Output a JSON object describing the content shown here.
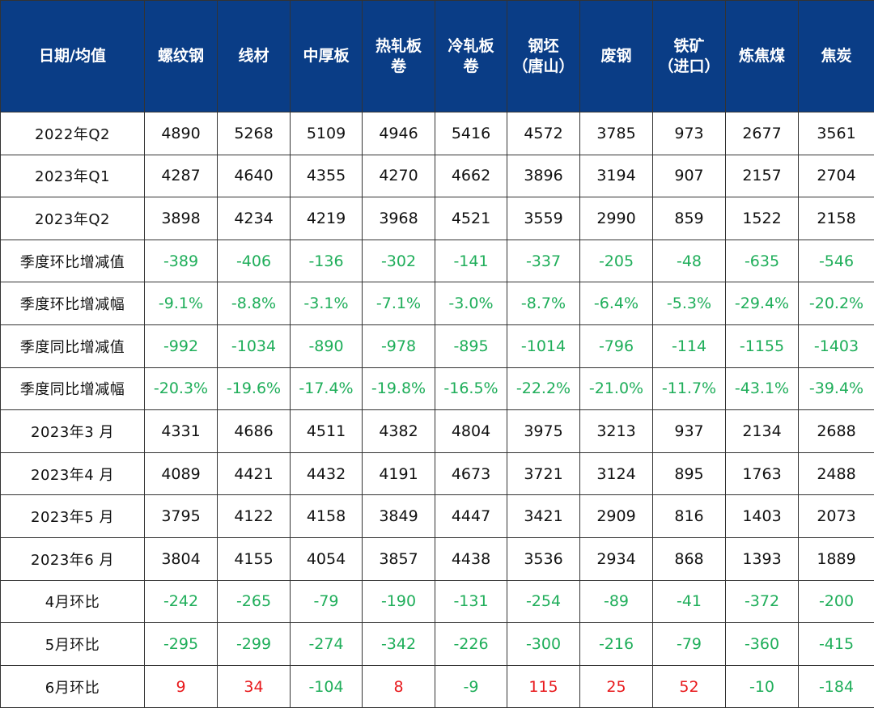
{
  "colors": {
    "header_bg": "#0a3d86",
    "header_text": "#ffffff",
    "negative": "#1fae5a",
    "positive": "#e8191c"
  },
  "header": [
    [
      "日期/均值"
    ],
    [
      "螺纹钢"
    ],
    [
      "线材"
    ],
    [
      "中厚板"
    ],
    [
      "热轧板",
      "卷"
    ],
    [
      "冷轧板",
      "卷"
    ],
    [
      "钢坯",
      "（唐山）"
    ],
    [
      "废钢"
    ],
    [
      "铁矿",
      "（进口）"
    ],
    [
      "炼焦煤"
    ],
    [
      "焦炭"
    ]
  ],
  "rows": [
    {
      "label": "2022年Q2",
      "cells": [
        "4890",
        "5268",
        "5109",
        "4946",
        "5416",
        "4572",
        "3785",
        "973",
        "2677",
        "3561"
      ]
    },
    {
      "label": "2023年Q1",
      "cells": [
        "4287",
        "4640",
        "4355",
        "4270",
        "4662",
        "3896",
        "3194",
        "907",
        "2157",
        "2704"
      ]
    },
    {
      "label": "2023年Q2",
      "cells": [
        "3898",
        "4234",
        "4219",
        "3968",
        "4521",
        "3559",
        "2990",
        "859",
        "1522",
        "2158"
      ]
    },
    {
      "label": "季度环比增减值",
      "cells": [
        "-389",
        "-406",
        "-136",
        "-302",
        "-141",
        "-337",
        "-205",
        "-48",
        "-635",
        "-546"
      ]
    },
    {
      "label": "季度环比增减幅",
      "cells": [
        "-9.1%",
        "-8.8%",
        "-3.1%",
        "-7.1%",
        "-3.0%",
        "-8.7%",
        "-6.4%",
        "-5.3%",
        "-29.4%",
        "-20.2%"
      ]
    },
    {
      "label": "季度同比增减值",
      "cells": [
        "-992",
        "-1034",
        "-890",
        "-978",
        "-895",
        "-1014",
        "-796",
        "-114",
        "-1155",
        "-1403"
      ]
    },
    {
      "label": "季度同比增减幅",
      "cells": [
        "-20.3%",
        "-19.6%",
        "-17.4%",
        "-19.8%",
        "-16.5%",
        "-22.2%",
        "-21.0%",
        "-11.7%",
        "-43.1%",
        "-39.4%"
      ]
    },
    {
      "label": "2023年3 月",
      "cells": [
        "4331",
        "4686",
        "4511",
        "4382",
        "4804",
        "3975",
        "3213",
        "937",
        "2134",
        "2688"
      ]
    },
    {
      "label": "2023年4 月",
      "cells": [
        "4089",
        "4421",
        "4432",
        "4191",
        "4673",
        "3721",
        "3124",
        "895",
        "1763",
        "2488"
      ]
    },
    {
      "label": "2023年5 月",
      "cells": [
        "3795",
        "4122",
        "4158",
        "3849",
        "4447",
        "3421",
        "2909",
        "816",
        "1403",
        "2073"
      ]
    },
    {
      "label": "2023年6 月",
      "cells": [
        "3804",
        "4155",
        "4054",
        "3857",
        "4438",
        "3536",
        "2934",
        "868",
        "1393",
        "1889"
      ]
    },
    {
      "label": "4月环比",
      "cells": [
        "-242",
        "-265",
        "-79",
        "-190",
        "-131",
        "-254",
        "-89",
        "-41",
        "-372",
        "-200"
      ]
    },
    {
      "label": "5月环比",
      "cells": [
        "-295",
        "-299",
        "-274",
        "-342",
        "-226",
        "-300",
        "-216",
        "-79",
        "-360",
        "-415"
      ]
    },
    {
      "label": "6月环比",
      "cells": [
        "9",
        "34",
        "-104",
        "8",
        "-9",
        "115",
        "25",
        "52",
        "-10",
        "-184"
      ]
    }
  ]
}
